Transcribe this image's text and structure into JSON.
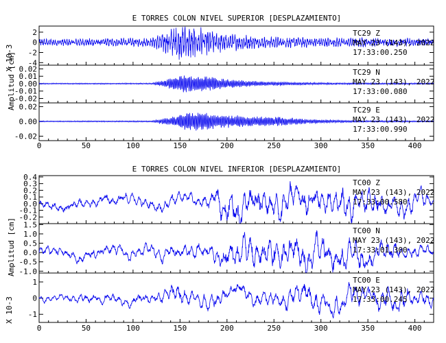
{
  "chart_data": [
    {
      "type": "line",
      "title": "E TORRES COLON NIVEL SUPERIOR [DESPLAZAMIENTO]",
      "ylabel": "Amplitud [cm]",
      "xticks": [
        "0",
        "50",
        "100",
        "150",
        "200",
        "250",
        "300",
        "350",
        "400"
      ],
      "xlim": [
        0,
        420
      ],
      "panels": [
        {
          "station": "TC29 Z",
          "date_line": "MAY 23 (143), 2022",
          "time_line": "17:33:00.250",
          "ylim": [
            -4.5,
            3.2
          ],
          "yticks": [
            "2",
            "0",
            "-2",
            "-4"
          ],
          "ytick_values": [
            2,
            0,
            -2,
            -4
          ],
          "scale_label": "X 10-3",
          "envelope": [
            [
              0,
              0.6
            ],
            [
              120,
              0.8
            ],
            [
              135,
              2.0
            ],
            [
              150,
              3.0
            ],
            [
              175,
              2.6
            ],
            [
              200,
              1.6
            ],
            [
              240,
              1.0
            ],
            [
              330,
              0.8
            ],
            [
              420,
              0.7
            ]
          ],
          "oscillation": "medium"
        },
        {
          "station": "TC29 N",
          "date_line": "MAY 23 (143), 2022",
          "time_line": "17:33:00.080",
          "ylim": [
            -0.026,
            0.025
          ],
          "yticks": [
            "0.02",
            "0.01",
            "0.00",
            "-0.01",
            "-0.02"
          ],
          "ytick_values": [
            0.02,
            0.01,
            0.0,
            -0.01,
            -0.02
          ],
          "envelope": [
            [
              0,
              0.0008
            ],
            [
              120,
              0.001
            ],
            [
              135,
              0.005
            ],
            [
              150,
              0.012
            ],
            [
              180,
              0.01
            ],
            [
              200,
              0.006
            ],
            [
              240,
              0.003
            ],
            [
              300,
              0.0015
            ],
            [
              420,
              0.001
            ]
          ],
          "oscillation": "fast"
        },
        {
          "station": "TC29 E",
          "date_line": "MAY 23 (143), 2022",
          "time_line": "17:33:00.990",
          "ylim": [
            -0.026,
            0.025
          ],
          "yticks": [
            "0.02",
            "0.00",
            "-0.02"
          ],
          "ytick_values": [
            0.02,
            0.0,
            -0.02
          ],
          "envelope": [
            [
              0,
              0.0008
            ],
            [
              120,
              0.001
            ],
            [
              140,
              0.006
            ],
            [
              160,
              0.014
            ],
            [
              190,
              0.01
            ],
            [
              230,
              0.007
            ],
            [
              260,
              0.006
            ],
            [
              290,
              0.003
            ],
            [
              330,
              0.0015
            ],
            [
              420,
              0.001
            ]
          ],
          "oscillation": "fast"
        }
      ]
    },
    {
      "type": "line",
      "title": "E TORRES COLON NIVEL INFERIOR [DESPLAZAMIENTO]",
      "ylabel": "Amplitud [cm]",
      "xticks": [
        "0",
        "50",
        "100",
        "150",
        "200",
        "250",
        "300",
        "350",
        "400"
      ],
      "xlim": [
        0,
        420
      ],
      "panels": [
        {
          "station": "TC00 Z",
          "date_line": "MAY 23 (143), 2022",
          "time_line": "17:33:00.580",
          "ylim": [
            -0.3,
            0.42
          ],
          "yticks": [
            "0.4",
            "0.3",
            "0.2",
            "0.1",
            "0.0",
            "-0.1",
            "-0.2"
          ],
          "ytick_values": [
            0.4,
            0.3,
            0.2,
            0.1,
            0.0,
            -0.1,
            -0.2
          ],
          "envelope": [
            [
              0,
              0.1
            ],
            [
              150,
              0.12
            ],
            [
              180,
              0.14
            ],
            [
              200,
              0.3
            ],
            [
              290,
              0.32
            ],
            [
              340,
              0.25
            ],
            [
              400,
              0.2
            ],
            [
              420,
              0.1
            ]
          ],
          "oscillation": "slow"
        },
        {
          "station": "TC00 N",
          "date_line": "MAY 23 (143), 2022",
          "time_line": "17:33:01.300",
          "ylim": [
            -1.1,
            1.55
          ],
          "yticks": [
            "1.5",
            "1.0",
            "0.5",
            "0.0",
            "-0.5",
            "-1.0"
          ],
          "ytick_values": [
            1.5,
            1.0,
            0.5,
            0.0,
            -0.5,
            -1.0
          ],
          "envelope": [
            [
              0,
              0.35
            ],
            [
              150,
              0.45
            ],
            [
              180,
              0.5
            ],
            [
              200,
              1.0
            ],
            [
              290,
              1.1
            ],
            [
              340,
              0.9
            ],
            [
              400,
              0.5
            ],
            [
              420,
              0.3
            ]
          ],
          "oscillation": "slow"
        },
        {
          "station": "TC00 E",
          "date_line": "MAY 23 (143), 2022",
          "time_line": "17:33:00.245",
          "ylim": [
            -1.5,
            1.55
          ],
          "yticks": [
            "1",
            "0",
            "-1"
          ],
          "ytick_values": [
            1,
            0,
            -1
          ],
          "scale_label": "X 10-3",
          "envelope": [
            [
              0,
              0.25
            ],
            [
              140,
              0.5
            ],
            [
              150,
              1.2
            ],
            [
              160,
              0.6
            ],
            [
              260,
              0.6
            ],
            [
              280,
              1.1
            ],
            [
              340,
              0.8
            ],
            [
              400,
              0.9
            ],
            [
              420,
              0.5
            ]
          ],
          "oscillation": "slow"
        }
      ]
    }
  ]
}
